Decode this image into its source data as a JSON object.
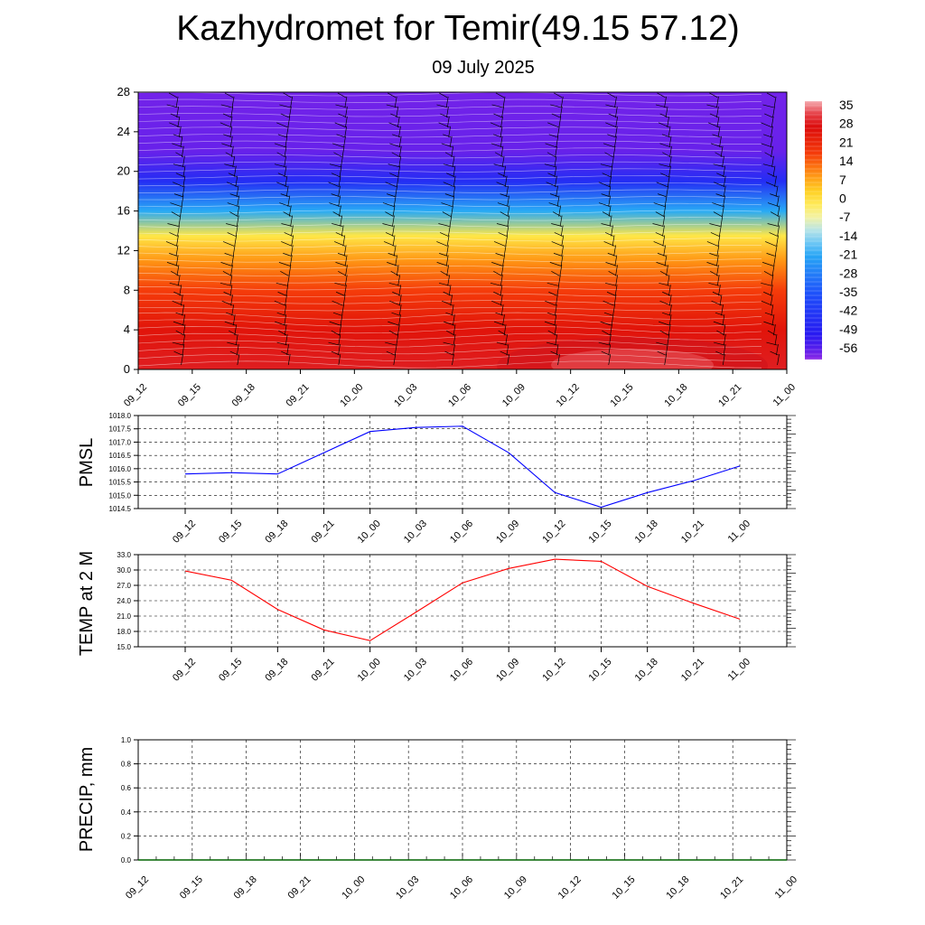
{
  "title": "Kazhydromet for Temir(49.15 57.12)",
  "subtitle": "09 July 2025",
  "time_labels": [
    "09_12",
    "09_15",
    "09_18",
    "09_21",
    "10_00",
    "10_03",
    "10_06",
    "10_09",
    "10_12",
    "10_15",
    "10_18",
    "10_21",
    "11_00"
  ],
  "chart_data": [
    {
      "type": "heatmap",
      "panel": "temperature-wind cross-section",
      "x_categories": [
        "09_12",
        "09_15",
        "09_18",
        "09_21",
        "10_00",
        "10_03",
        "10_06",
        "10_09",
        "10_12",
        "10_15",
        "10_18",
        "10_21",
        "11_00"
      ],
      "y_ticks": [
        "0",
        "4",
        "8",
        "12",
        "16",
        "20",
        "24",
        "28"
      ],
      "ylim": [
        0,
        28
      ],
      "temperature_profile": [
        {
          "level": 0,
          "value": 30
        },
        {
          "level": 4,
          "value": 26
        },
        {
          "level": 8,
          "value": 18
        },
        {
          "level": 11,
          "value": 10
        },
        {
          "level": 13.5,
          "value": 0
        },
        {
          "level": 16,
          "value": -20
        },
        {
          "level": 19,
          "value": -45
        },
        {
          "level": 22,
          "value": -57
        },
        {
          "level": 28,
          "value": -58
        }
      ],
      "colorbar": {
        "labels": [
          "35",
          "28",
          "21",
          "14",
          "7",
          "0",
          "-7",
          "-14",
          "-21",
          "-28",
          "-35",
          "-42",
          "-49",
          "-56"
        ],
        "range": [
          -60,
          38
        ]
      },
      "wind_barbs": "present"
    },
    {
      "type": "line",
      "panel": "pmsl",
      "ylabel": "PMSL",
      "x": [
        "09_12",
        "09_15",
        "09_18",
        "09_21",
        "10_00",
        "10_03",
        "10_06",
        "10_09",
        "10_12",
        "10_15",
        "10_18",
        "10_21",
        "11_00"
      ],
      "series": [
        {
          "values": [
            1015.8,
            1015.85,
            1015.8,
            1016.6,
            1017.4,
            1017.55,
            1017.6,
            1016.6,
            1015.1,
            1014.55,
            1015.1,
            1015.55,
            1016.1
          ],
          "color": "#0000ff"
        }
      ],
      "ylim": [
        1014.5,
        1018.0
      ],
      "y_ticks": [
        "1014.5",
        "1015.0",
        "1015.5",
        "1016.0",
        "1016.5",
        "1017.0",
        "1017.5",
        "1018.0"
      ],
      "grid": true
    },
    {
      "type": "line",
      "panel": "temp2m",
      "ylabel": "TEMP at 2 M",
      "x": [
        "09_12",
        "09_15",
        "09_18",
        "09_21",
        "10_00",
        "10_03",
        "10_06",
        "10_09",
        "10_12",
        "10_15",
        "10_18",
        "10_21",
        "11_00"
      ],
      "series": [
        {
          "values": [
            29.8,
            28.0,
            22.3,
            18.3,
            16.2,
            21.8,
            27.5,
            30.3,
            32.1,
            31.7,
            26.8,
            23.5,
            20.4
          ],
          "color": "#ff0000"
        }
      ],
      "ylim": [
        15.0,
        33.0
      ],
      "y_ticks": [
        "15.0",
        "18.0",
        "21.0",
        "24.0",
        "27.0",
        "30.0",
        "33.0"
      ],
      "grid": true
    },
    {
      "type": "line",
      "panel": "precip",
      "ylabel": "PRECIP, mm",
      "x": [
        "09_12",
        "09_15",
        "09_18",
        "09_21",
        "10_00",
        "10_03",
        "10_06",
        "10_09",
        "10_12",
        "10_15",
        "10_18",
        "10_21",
        "11_00"
      ],
      "series": [
        {
          "values": [
            0,
            0,
            0,
            0,
            0,
            0,
            0,
            0,
            0,
            0,
            0,
            0,
            0
          ],
          "color": "#006400"
        }
      ],
      "ylim": [
        0.0,
        1.0
      ],
      "y_ticks": [
        "0.0",
        "0.2",
        "0.4",
        "0.6",
        "0.8",
        "1.0"
      ],
      "grid": true
    }
  ]
}
